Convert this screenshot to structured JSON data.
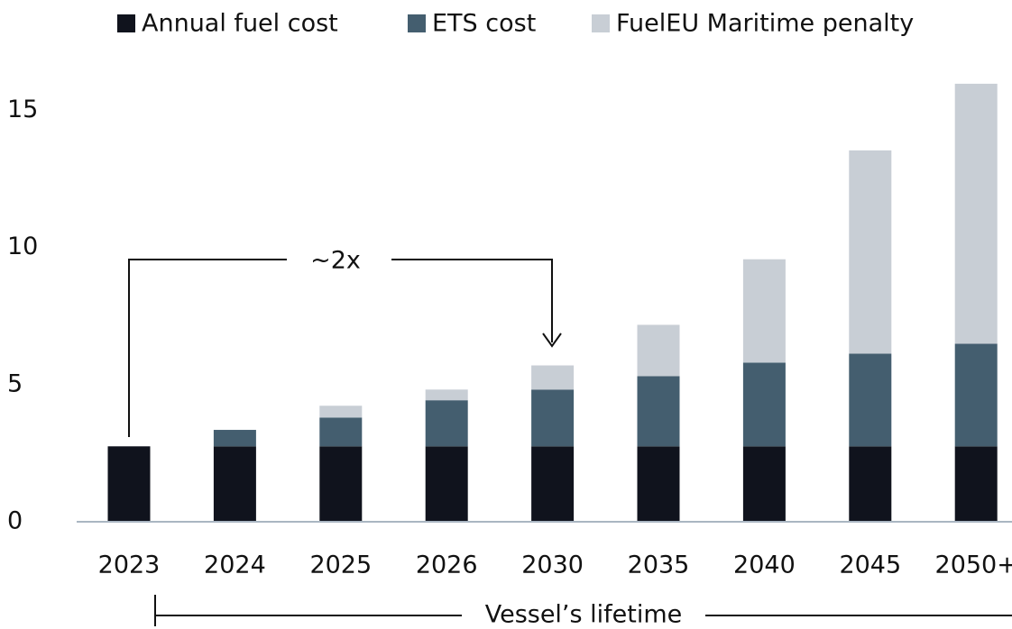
{
  "chart_data": {
    "type": "stacked-bar",
    "categories": [
      "2023",
      "2024",
      "2025",
      "2026",
      "2030",
      "2035",
      "2040",
      "2045",
      "2050+"
    ],
    "series": [
      {
        "name": "Annual fuel cost",
        "color": "#10131d",
        "values": [
          2.75,
          2.75,
          2.75,
          2.75,
          2.75,
          2.75,
          2.75,
          2.75,
          2.75
        ]
      },
      {
        "name": "ETS cost",
        "color": "#445e6f",
        "values": [
          0,
          0.6,
          1.05,
          1.68,
          2.07,
          2.56,
          3.05,
          3.38,
          3.74
        ]
      },
      {
        "name": "FuelEU Maritime penalty",
        "color": "#c8ced5",
        "values": [
          0,
          0,
          0.43,
          0.39,
          0.88,
          1.87,
          3.77,
          7.41,
          9.48
        ]
      }
    ],
    "ylim": [
      0,
      16
    ],
    "yticks": [
      0,
      5,
      10,
      15
    ],
    "annotations": [
      "~2x",
      "Vessel’s lifetime"
    ]
  }
}
